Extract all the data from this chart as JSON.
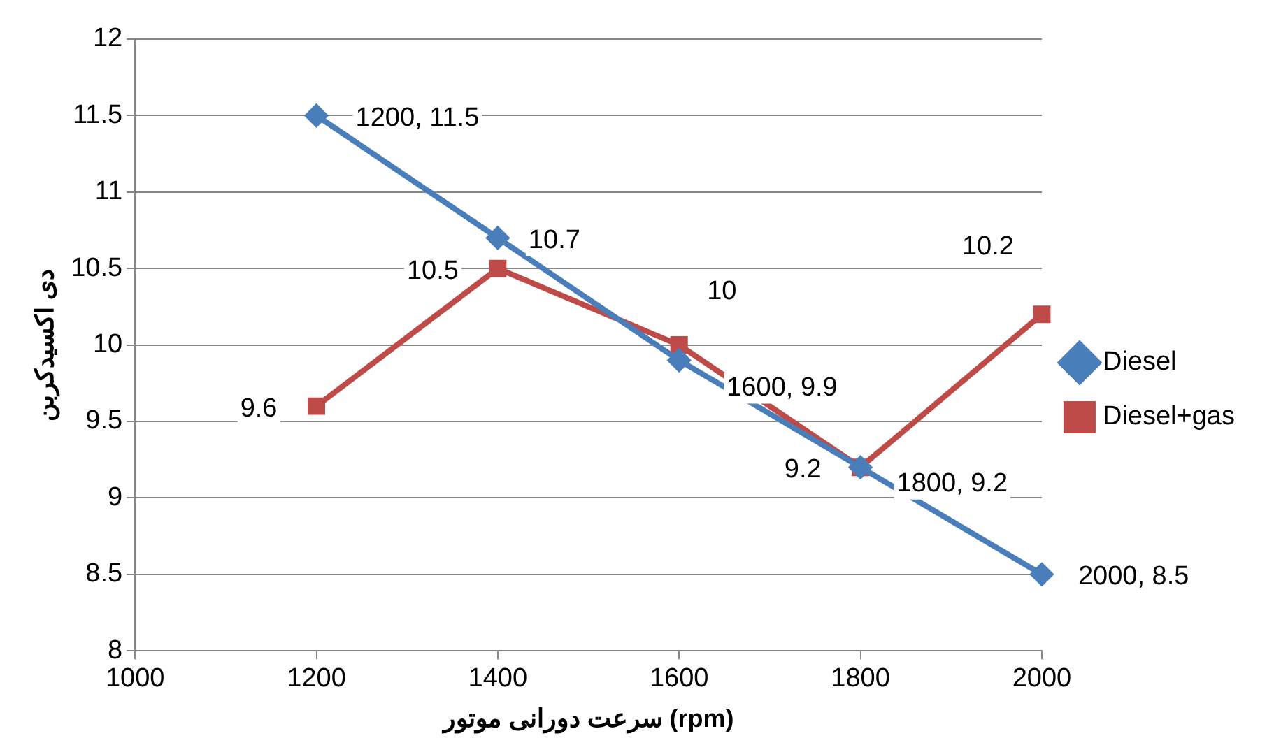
{
  "chart_data": {
    "type": "line",
    "xlabel": "سرعت دورانی موتور (rpm)",
    "ylabel": "دی اکسیدکربن",
    "x": [
      1200,
      1400,
      1600,
      1800,
      2000
    ],
    "series": [
      {
        "name": "Diesel",
        "color": "#4a7ebb",
        "values": [
          11.5,
          10.7,
          9.9,
          9.2,
          8.5
        ],
        "marker": "diamond",
        "value_labels": [
          "1200, 11.5",
          "10.7",
          "1600, 9.9",
          "1800, 9.2",
          "2000, 8.5"
        ]
      },
      {
        "name": "Diesel+gas",
        "color": "#be4b48",
        "values": [
          9.6,
          10.5,
          10,
          9.2,
          10.2
        ],
        "marker": "square",
        "value_labels": [
          "9.6",
          "10.5",
          "10",
          "9.2",
          "10.2"
        ]
      }
    ],
    "xlim": [
      1000,
      2000
    ],
    "xticks": [
      1000,
      1200,
      1400,
      1600,
      1800,
      2000
    ],
    "ylim": [
      8,
      12
    ],
    "yticks": [
      8,
      8.5,
      9,
      9.5,
      10,
      10.5,
      11,
      11.5,
      12
    ],
    "grid": "y",
    "legend": "right"
  }
}
